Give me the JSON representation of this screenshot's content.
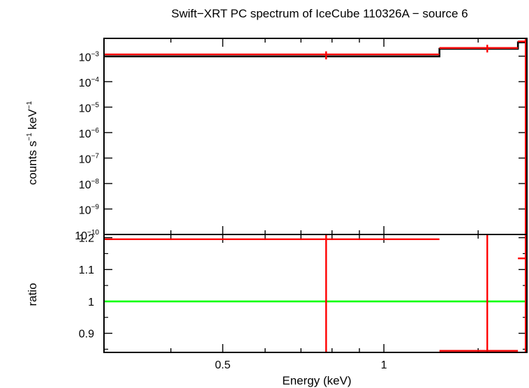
{
  "chart_data": [
    {
      "panel": "spectrum",
      "type": "line",
      "title": "Swift−XRT PC spectrum of IceCube 110326A − source 6",
      "xlabel": "Energy (keV)",
      "ylabel_parts": [
        "counts s",
        "−1",
        " keV",
        "−1"
      ],
      "x_scale": "log",
      "y_scale": "log",
      "xlim": [
        0.3,
        1.85
      ],
      "ylim": [
        1e-10,
        0.005
      ],
      "y_ticks": [
        {
          "value": 0.001,
          "base": "10",
          "exp": "−3"
        },
        {
          "value": 0.0001,
          "base": "10",
          "exp": "−4"
        },
        {
          "value": 1e-05,
          "base": "10",
          "exp": "−5"
        },
        {
          "value": 1e-06,
          "base": "10",
          "exp": "−6"
        },
        {
          "value": 1e-07,
          "base": "10",
          "exp": "−7"
        },
        {
          "value": 1e-08,
          "base": "10",
          "exp": "−8"
        },
        {
          "value": 1e-09,
          "base": "10",
          "exp": "−9"
        },
        {
          "value": 1e-10,
          "base": "10",
          "exp": "−10"
        }
      ],
      "series": [
        {
          "kind": "model-step",
          "color": "#000000",
          "x": [
            0.3,
            1.27,
            1.78,
            1.85
          ],
          "y": [
            0.00098,
            0.00195,
            0.0035,
            0.0035
          ]
        },
        {
          "kind": "data",
          "color": "#ff0000",
          "points": [
            {
              "x": 0.78,
              "xlo": 0.3,
              "xhi": 1.27,
              "y": 0.00118,
              "ylo": 0.00075,
              "yhi": 0.00155
            },
            {
              "x": 1.56,
              "xlo": 1.27,
              "xhi": 1.78,
              "y": 0.0021,
              "ylo": 0.0014,
              "yhi": 0.0028
            },
            {
              "x": 1.84,
              "xlo": 1.78,
              "xhi": 1.85,
              "y": 0.0038,
              "ylo": 1e-10,
              "yhi": 0.005
            }
          ]
        }
      ]
    },
    {
      "panel": "ratio",
      "type": "line",
      "ylabel": "ratio",
      "xlabel": "Energy (keV)",
      "x_scale": "log",
      "xlim": [
        0.3,
        1.85
      ],
      "ylim": [
        0.84,
        1.21
      ],
      "x_ticks": [
        {
          "value": 0.5,
          "label": "0.5"
        },
        {
          "value": 1,
          "label": "1"
        }
      ],
      "y_ticks": [
        {
          "value": 0.9,
          "label": "0.9"
        },
        {
          "value": 1,
          "label": "1"
        },
        {
          "value": 1.1,
          "label": "1.1"
        },
        {
          "value": 1.2,
          "label": "1.2"
        }
      ],
      "series": [
        {
          "kind": "reference",
          "color": "#00ff00",
          "y": 1
        },
        {
          "kind": "data",
          "color": "#ff0000",
          "points": [
            {
              "x": 0.78,
              "xlo": 0.3,
              "xhi": 1.27,
              "y": 1.195,
              "ylo": 0.84,
              "yhi": 1.21
            },
            {
              "x": 1.56,
              "xlo": 1.27,
              "xhi": 1.78,
              "y": 0.845,
              "ylo": 0.84,
              "yhi": 1.21
            },
            {
              "x": 1.84,
              "xlo": 1.78,
              "xhi": 1.85,
              "y": 1.135,
              "ylo": 0.84,
              "yhi": 1.21
            }
          ]
        }
      ]
    }
  ]
}
